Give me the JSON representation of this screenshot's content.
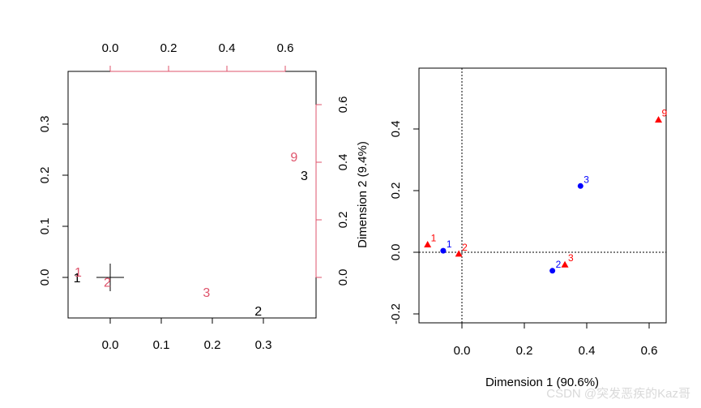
{
  "colors": {
    "red_series": "#DF536B",
    "black_series": "#000000",
    "blue_points": "#0000FF",
    "red_points": "#FF0000"
  },
  "watermark": "CSDN @突发恶疾的Kaz哥",
  "chart_data": [
    {
      "type": "scatter",
      "title": "",
      "xlabel": "",
      "ylabel": "",
      "xlim": [
        -0.08,
        0.4
      ],
      "ylim": [
        -0.08,
        0.4
      ],
      "x_ticks": [
        "0.0",
        "0.1",
        "0.2",
        "0.3"
      ],
      "y_ticks": [
        "0.0",
        "0.1",
        "0.2",
        "0.3"
      ],
      "top_axis_ticks": [
        "0.0",
        "0.2",
        "0.4",
        "0.6"
      ],
      "right_axis_ticks": [
        "0.0",
        "0.2",
        "0.4",
        "0.6"
      ],
      "right_axis_label": "Dimension 2 (9.4%)",
      "origin_cross": [
        0.0,
        0.0
      ],
      "series": [
        {
          "color": "black",
          "points": [
            {
              "label": "1",
              "x": -0.065,
              "y": 0.0
            },
            {
              "label": "2",
              "x": 0.29,
              "y": -0.065
            },
            {
              "label": "3",
              "x": 0.38,
              "y": 0.2
            }
          ]
        },
        {
          "color": "red",
          "top_right_axes": true,
          "points": [
            {
              "label": "1",
              "x": -0.11,
              "y": 0.02
            },
            {
              "label": "2",
              "x": -0.01,
              "y": -0.015
            },
            {
              "label": "3",
              "x": 0.33,
              "y": -0.05
            },
            {
              "label": "9",
              "x": 0.63,
              "y": 0.42
            }
          ]
        }
      ]
    },
    {
      "type": "scatter",
      "title": "",
      "xlabel": "Dimension 1 (90.6%)",
      "ylabel": "",
      "xlim": [
        -0.14,
        0.66
      ],
      "ylim": [
        -0.24,
        0.6
      ],
      "x_ticks": [
        "0.0",
        "0.2",
        "0.4",
        "0.6"
      ],
      "y_ticks": [
        "-0.2",
        "0.0",
        "0.2",
        "0.4"
      ],
      "reference_lines": {
        "x": 0,
        "y": 0,
        "style": "dotted"
      },
      "series": [
        {
          "marker": "circle",
          "color": "blue",
          "points": [
            {
              "label": "1",
              "x": -0.06,
              "y": 0.005
            },
            {
              "label": "2",
              "x": 0.29,
              "y": -0.06
            },
            {
              "label": "3",
              "x": 0.38,
              "y": 0.215
            }
          ]
        },
        {
          "marker": "triangle",
          "color": "red",
          "points": [
            {
              "label": "1",
              "x": -0.11,
              "y": 0.025
            },
            {
              "label": "2",
              "x": -0.01,
              "y": -0.005
            },
            {
              "label": "3",
              "x": 0.33,
              "y": -0.04
            },
            {
              "label": "9",
              "x": 0.63,
              "y": 0.43
            }
          ]
        }
      ]
    }
  ]
}
